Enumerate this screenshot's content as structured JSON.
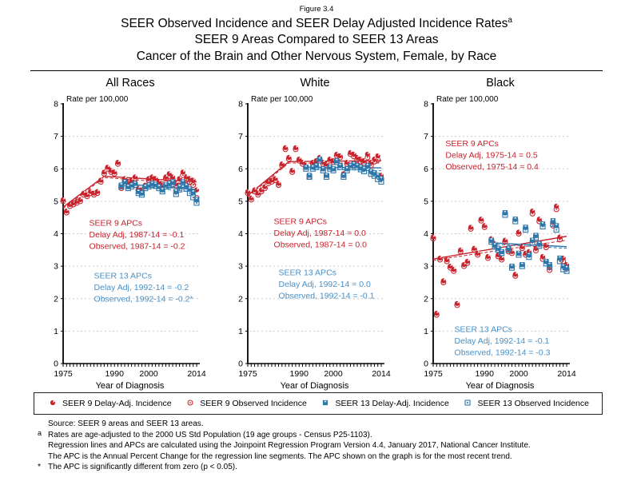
{
  "figure_label": "Figure 3.4",
  "title_lines": [
    "SEER Observed Incidence and SEER Delay Adjusted Incidence Rates",
    "SEER 9 Areas Compared to SEER 13 Areas",
    "Cancer of the Brain and Other Nervous System, Female, by Race"
  ],
  "title_superscript": "a",
  "colors": {
    "seer9": "#c8232c",
    "seer13": "#2e77ab",
    "seer13_text": "#4a90c6",
    "grid": "#cccccc",
    "axis": "#000000"
  },
  "legend": [
    {
      "marker": "filled-circle",
      "series": "seer9",
      "label": "SEER 9 Delay-Adj. Incidence"
    },
    {
      "marker": "open-circle",
      "series": "seer9",
      "label": "SEER 9 Observed Incidence"
    },
    {
      "marker": "filled-square",
      "series": "seer13",
      "label": "SEER 13 Delay-Adj. Incidence"
    },
    {
      "marker": "open-square",
      "series": "seer13",
      "label": "SEER 13 Observed Incidence"
    }
  ],
  "footnotes": {
    "lines": [
      {
        "marker": "",
        "text": "Source: SEER 9 areas and SEER 13 areas."
      },
      {
        "marker": "a",
        "text": "Rates are age-adjusted to the 2000 US Std Population (19 age groups - Census P25-1103)."
      },
      {
        "marker": "",
        "text": "Regression lines and APCs are calculated using the Joinpoint Regression Program Version 4.4, January 2017, National Cancer Institute."
      },
      {
        "marker": "",
        "text": "The APC is the Annual Percent Change for the regression line segments. The APC shown on the graph is for the most recent trend."
      },
      {
        "marker": "*",
        "text": "The APC is significantly different from zero (p < 0.05)."
      }
    ]
  },
  "chart_data": [
    {
      "type": "scatter",
      "title": "All Races",
      "ylabel": "Rate per 100,000",
      "xlabel": "Year of Diagnosis",
      "ylim": [
        0,
        8
      ],
      "y_ticks": [
        0,
        1,
        2,
        3,
        4,
        5,
        6,
        7,
        8
      ],
      "x_tick_labels": [
        1975,
        1990,
        2000,
        2014
      ],
      "x_start_year": 1975,
      "x_end_year": 2014,
      "seer13_start_year": 1992,
      "series": {
        "seer9_delay": [
          5.05,
          4.7,
          4.9,
          4.95,
          5.0,
          5.05,
          5.25,
          5.2,
          5.3,
          5.25,
          5.3,
          5.65,
          5.9,
          6.05,
          5.95,
          5.9,
          6.2,
          5.45,
          5.7,
          5.6,
          5.65,
          5.75,
          5.4,
          5.35,
          5.5,
          5.7,
          5.75,
          5.7,
          5.6,
          5.5,
          5.75,
          5.85,
          5.75,
          5.55,
          5.7,
          5.9,
          5.75,
          5.7,
          5.65,
          5.35
        ],
        "seer9_obs": [
          5.0,
          4.65,
          4.85,
          4.9,
          4.95,
          5.0,
          5.2,
          5.15,
          5.25,
          5.2,
          5.25,
          5.6,
          5.85,
          6.0,
          5.9,
          5.85,
          6.15,
          5.4,
          5.65,
          5.55,
          5.6,
          5.7,
          5.35,
          5.3,
          5.45,
          5.65,
          5.7,
          5.65,
          5.55,
          5.45,
          5.7,
          5.78,
          5.68,
          5.48,
          5.62,
          5.8,
          5.65,
          5.58,
          5.5,
          5.1
        ],
        "seer13_delay": [
          5.5,
          5.6,
          5.45,
          5.5,
          5.55,
          5.3,
          5.25,
          5.45,
          5.5,
          5.55,
          5.52,
          5.45,
          5.35,
          5.5,
          5.55,
          5.6,
          5.3,
          5.45,
          5.6,
          5.48,
          5.38,
          5.28,
          5.05
        ],
        "seer13_obs": [
          5.45,
          5.55,
          5.4,
          5.45,
          5.5,
          5.25,
          5.2,
          5.4,
          5.45,
          5.5,
          5.47,
          5.4,
          5.3,
          5.45,
          5.48,
          5.52,
          5.22,
          5.36,
          5.5,
          5.38,
          5.25,
          5.12,
          4.95
        ]
      },
      "trend_lines": {
        "seer9_delay": [
          [
            1975,
            4.82
          ],
          [
            1987,
            5.77
          ],
          [
            2014,
            5.6
          ]
        ],
        "seer9_obs": [
          [
            1975,
            4.78
          ],
          [
            1987,
            5.73
          ],
          [
            2014,
            5.52
          ]
        ],
        "seer13_delay": [
          [
            1992,
            5.54
          ],
          [
            2014,
            5.36
          ]
        ],
        "seer13_obs": [
          [
            1992,
            5.5
          ],
          [
            2014,
            5.28
          ]
        ]
      },
      "annotations": [
        {
          "series": "seer9",
          "x_year": 1982.6,
          "y_rate": 4.25,
          "lines": [
            "SEER 9 APCs",
            "Delay Adj, 1987-14 = -0.1",
            "Observed, 1987-14 = -0.2"
          ]
        },
        {
          "series": "seer13",
          "x_year": 1984.0,
          "y_rate": 2.62,
          "lines": [
            "SEER 13 APCs",
            "Delay Adj, 1992-14 = -0.2",
            "Observed, 1992-14 = -0.2*"
          ]
        }
      ]
    },
    {
      "type": "scatter",
      "title": "White",
      "ylabel": "Rate per 100,000",
      "xlabel": "Year of Diagnosis",
      "ylim": [
        0,
        8
      ],
      "y_ticks": [
        0,
        1,
        2,
        3,
        4,
        5,
        6,
        7,
        8
      ],
      "x_tick_labels": [
        1975,
        1990,
        2000,
        2014
      ],
      "x_start_year": 1975,
      "x_end_year": 2014,
      "seer13_start_year": 1992,
      "series": {
        "seer9_delay": [
          5.3,
          5.1,
          5.35,
          5.25,
          5.35,
          5.45,
          5.6,
          5.65,
          5.7,
          5.55,
          6.15,
          6.65,
          6.35,
          5.95,
          6.65,
          6.3,
          6.2,
          6.1,
          5.8,
          6.2,
          6.25,
          6.35,
          6.2,
          6.15,
          6.3,
          6.25,
          6.45,
          6.4,
          5.85,
          6.2,
          6.5,
          6.45,
          6.35,
          6.3,
          6.25,
          6.45,
          6.2,
          6.3,
          6.4,
          5.8
        ],
        "seer9_obs": [
          5.25,
          5.05,
          5.3,
          5.2,
          5.3,
          5.4,
          5.55,
          5.6,
          5.65,
          5.5,
          6.1,
          6.6,
          6.3,
          5.9,
          6.6,
          6.25,
          6.15,
          6.05,
          5.75,
          6.15,
          6.2,
          6.3,
          6.15,
          6.1,
          6.25,
          6.2,
          6.4,
          6.35,
          5.8,
          6.15,
          6.45,
          6.38,
          6.28,
          6.22,
          6.18,
          6.35,
          6.1,
          6.22,
          6.28,
          5.7
        ],
        "seer13_delay": [
          6.05,
          5.8,
          6.05,
          6.1,
          6.3,
          6.0,
          5.8,
          6.05,
          6.0,
          6.25,
          6.1,
          5.8,
          6.0,
          6.1,
          6.15,
          6.1,
          6.05,
          6.0,
          6.1,
          5.92,
          5.88,
          5.8,
          5.7
        ],
        "seer13_obs": [
          6.0,
          5.75,
          6.0,
          6.05,
          6.25,
          5.95,
          5.75,
          6.0,
          5.95,
          6.2,
          6.05,
          5.75,
          5.95,
          6.05,
          6.1,
          6.05,
          5.98,
          5.92,
          6.02,
          5.84,
          5.78,
          5.68,
          5.6
        ]
      },
      "trend_lines": {
        "seer9_delay": [
          [
            1975,
            5.18
          ],
          [
            1987,
            6.22
          ],
          [
            2014,
            6.25
          ]
        ],
        "seer9_obs": [
          [
            1975,
            5.14
          ],
          [
            1987,
            6.18
          ],
          [
            2014,
            6.18
          ]
        ],
        "seer13_delay": [
          [
            1992,
            6.05
          ],
          [
            2014,
            6.03
          ]
        ],
        "seer13_obs": [
          [
            1992,
            6.0
          ],
          [
            2014,
            5.94
          ]
        ]
      },
      "annotations": [
        {
          "series": "seer9",
          "x_year": 1982.6,
          "y_rate": 4.3,
          "lines": [
            "SEER 9 APCs",
            "Delay Adj, 1987-14 = 0.0",
            "Observed, 1987-14 = 0.0"
          ]
        },
        {
          "series": "seer13",
          "x_year": 1984.0,
          "y_rate": 2.72,
          "lines": [
            "SEER 13 APCs",
            "Delay Adj, 1992-14 = 0.0",
            "Observed, 1992-14 = -0.1"
          ]
        }
      ]
    },
    {
      "type": "scatter",
      "title": "Black",
      "ylabel": "Rate per 100,000",
      "xlabel": "Year of Diagnosis",
      "ylim": [
        0,
        8
      ],
      "y_ticks": [
        0,
        1,
        2,
        3,
        4,
        5,
        6,
        7,
        8
      ],
      "x_tick_labels": [
        1975,
        1990,
        2000,
        2014
      ],
      "x_start_year": 1975,
      "x_end_year": 2014,
      "seer13_start_year": 1992,
      "series": {
        "seer9_delay": [
          3.9,
          1.55,
          3.25,
          2.55,
          3.2,
          3.0,
          2.9,
          1.85,
          3.5,
          3.05,
          3.15,
          4.2,
          3.55,
          3.4,
          4.45,
          4.25,
          3.3,
          3.85,
          3.7,
          3.35,
          3.25,
          3.8,
          3.5,
          3.45,
          2.75,
          4.05,
          3.6,
          3.4,
          3.45,
          4.7,
          3.55,
          4.45,
          3.3,
          3.65,
          2.95,
          4.35,
          4.85,
          3.9,
          3.25,
          3.05
        ],
        "seer9_obs": [
          3.85,
          1.5,
          3.2,
          2.5,
          3.15,
          2.95,
          2.85,
          1.8,
          3.45,
          3.0,
          3.1,
          4.15,
          3.5,
          3.35,
          4.4,
          4.2,
          3.25,
          3.8,
          3.65,
          3.3,
          3.2,
          3.75,
          3.45,
          3.4,
          2.7,
          4.0,
          3.55,
          3.35,
          3.4,
          4.62,
          3.48,
          4.38,
          3.22,
          3.58,
          2.88,
          4.25,
          4.75,
          3.82,
          3.15,
          2.92
        ],
        "seer13_delay": [
          3.8,
          3.65,
          3.55,
          3.45,
          4.65,
          3.55,
          3.0,
          4.45,
          3.4,
          3.05,
          4.2,
          3.35,
          3.8,
          3.95,
          3.7,
          4.3,
          3.15,
          3.05,
          4.4,
          4.25,
          3.25,
          3.0,
          2.95
        ],
        "seer13_obs": [
          3.75,
          3.6,
          3.5,
          3.4,
          4.58,
          3.5,
          2.95,
          4.38,
          3.35,
          3.0,
          4.12,
          3.28,
          3.72,
          3.88,
          3.62,
          4.22,
          3.08,
          2.98,
          4.3,
          4.12,
          3.15,
          2.9,
          2.85
        ]
      },
      "trend_lines": {
        "seer9_delay": [
          [
            1975,
            3.22
          ],
          [
            2014,
            3.92
          ]
        ],
        "seer9_obs": [
          [
            1975,
            3.18
          ],
          [
            2014,
            3.8
          ]
        ],
        "seer13_delay": [
          [
            1992,
            3.72
          ],
          [
            2014,
            3.6
          ]
        ],
        "seer13_obs": [
          [
            1992,
            3.68
          ],
          [
            2014,
            3.55
          ]
        ]
      },
      "annotations": [
        {
          "series": "seer9",
          "x_year": 1978.6,
          "y_rate": 6.7,
          "lines": [
            "SEER 9 APCs",
            "Delay Adj, 1975-14 = 0.5",
            "Observed, 1975-14 = 0.4"
          ]
        },
        {
          "series": "seer13",
          "x_year": 1981.2,
          "y_rate": 0.97,
          "lines": [
            "SEER 13 APCs",
            "Delay Adj, 1992-14 = -0.1",
            "Observed, 1992-14 = -0.3"
          ]
        }
      ]
    }
  ]
}
